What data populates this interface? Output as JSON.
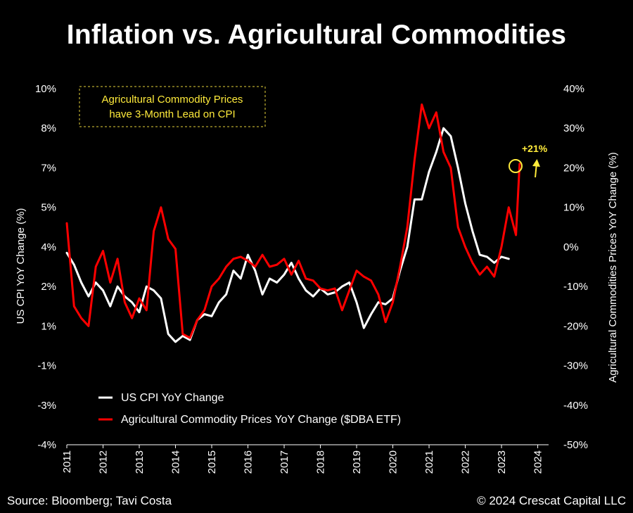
{
  "chart_data": {
    "type": "line",
    "title": "Inflation vs. Agricultural Commodities",
    "ylabel_left": "US CPI YoY Change (%)",
    "ylabel_right": "Agricultural Commodities Prices YoY Change (%)",
    "left_ticks": [
      "10%",
      "8%",
      "7%",
      "5%",
      "4%",
      "2%",
      "1%",
      "-1%",
      "-3%",
      "-4%"
    ],
    "right_ticks": [
      "40%",
      "30%",
      "20%",
      "10%",
      "0%",
      "-10%",
      "-20%",
      "-30%",
      "-40%",
      "-50%"
    ],
    "right_ylim": [
      -50,
      40
    ],
    "x_ticks": [
      "2011",
      "2012",
      "2013",
      "2014",
      "2015",
      "2016",
      "2017",
      "2018",
      "2019",
      "2020",
      "2021",
      "2022",
      "2023",
      "2024"
    ],
    "xlim": [
      2011,
      2024.3
    ],
    "series": [
      {
        "name": "US CPI YoY Change",
        "color": "#ffffff",
        "axis": "right_equivalent",
        "x": [
          2011.0,
          2011.2,
          2011.4,
          2011.6,
          2011.8,
          2012.0,
          2012.2,
          2012.4,
          2012.6,
          2012.8,
          2013.0,
          2013.2,
          2013.4,
          2013.6,
          2013.8,
          2014.0,
          2014.2,
          2014.4,
          2014.6,
          2014.8,
          2015.0,
          2015.2,
          2015.4,
          2015.6,
          2015.8,
          2016.0,
          2016.2,
          2016.4,
          2016.6,
          2016.8,
          2017.0,
          2017.2,
          2017.4,
          2017.6,
          2017.8,
          2018.0,
          2018.2,
          2018.4,
          2018.6,
          2018.8,
          2019.0,
          2019.2,
          2019.4,
          2019.6,
          2019.8,
          2020.0,
          2020.2,
          2020.4,
          2020.6,
          2020.8,
          2021.0,
          2021.2,
          2021.4,
          2021.6,
          2021.8,
          2022.0,
          2022.2,
          2022.4,
          2022.6,
          2022.8,
          2023.0,
          2023.2
        ],
        "values": [
          -1.5,
          -4.5,
          -9,
          -12.5,
          -9,
          -11,
          -15,
          -10,
          -12.5,
          -14,
          -16.5,
          -10,
          -11,
          -13,
          -22,
          -24,
          -22.5,
          -23.5,
          -18.5,
          -17,
          -17.5,
          -14,
          -12,
          -6,
          -8,
          -2,
          -6,
          -12,
          -8,
          -9,
          -7,
          -4,
          -8,
          -11,
          -12.5,
          -10.5,
          -12,
          -11.5,
          -10,
          -9,
          -14,
          -20.5,
          -17,
          -14,
          -14.5,
          -13,
          -6,
          0,
          12,
          12,
          19,
          24,
          30,
          28,
          20,
          11,
          4,
          -2,
          -2.5,
          -4,
          -2.5,
          -3
        ]
      },
      {
        "name": "Agricultural Commodity Prices YoY Change ($DBA ETF)",
        "color": "#ff0000",
        "axis": "right",
        "x": [
          2011.0,
          2011.2,
          2011.4,
          2011.6,
          2011.8,
          2012.0,
          2012.2,
          2012.4,
          2012.6,
          2012.8,
          2013.0,
          2013.2,
          2013.4,
          2013.6,
          2013.8,
          2014.0,
          2014.2,
          2014.4,
          2014.6,
          2014.8,
          2015.0,
          2015.2,
          2015.4,
          2015.6,
          2015.8,
          2016.0,
          2016.2,
          2016.4,
          2016.6,
          2016.8,
          2017.0,
          2017.2,
          2017.4,
          2017.6,
          2017.8,
          2018.0,
          2018.2,
          2018.4,
          2018.6,
          2018.8,
          2019.0,
          2019.2,
          2019.4,
          2019.6,
          2019.8,
          2020.0,
          2020.2,
          2020.4,
          2020.6,
          2020.8,
          2021.0,
          2021.2,
          2021.4,
          2021.6,
          2021.8,
          2022.0,
          2022.2,
          2022.4,
          2022.6,
          2022.8,
          2023.0,
          2023.2,
          2023.4,
          2023.5
        ],
        "values": [
          6,
          -15,
          -18,
          -20,
          -5,
          -1,
          -9,
          -3,
          -14,
          -18,
          -13,
          -16,
          4,
          10,
          2,
          -0.5,
          -22,
          -23,
          -18.5,
          -16,
          -10,
          -8,
          -5,
          -3,
          -2.5,
          -3.5,
          -5,
          -2,
          -5,
          -4.5,
          -3,
          -7,
          -3.5,
          -8,
          -8.5,
          -10.5,
          -11,
          -10.5,
          -16,
          -11,
          -6,
          -7.5,
          -8.5,
          -12,
          -19,
          -14,
          -5,
          5,
          22,
          36,
          30,
          34,
          24,
          20,
          5,
          0,
          -4,
          -7,
          -5,
          -7.5,
          0,
          10,
          3,
          21
        ]
      }
    ],
    "legend": [
      "US CPI YoY Change",
      "Agricultural Commodity Prices YoY Change ($DBA ETF)"
    ],
    "annotation": "Agricultural Commodity Prices have 3-Month Lead on CPI",
    "annotation_line1": "Agricultural Commodity Prices",
    "annotation_line2": "have 3-Month Lead on CPI",
    "callout": "+21%",
    "accent_color": "#ffeb3b"
  },
  "footer": {
    "source": "Source: Bloomberg; Tavi Costa",
    "copyright": "© 2024 Crescat Capital LLC"
  }
}
